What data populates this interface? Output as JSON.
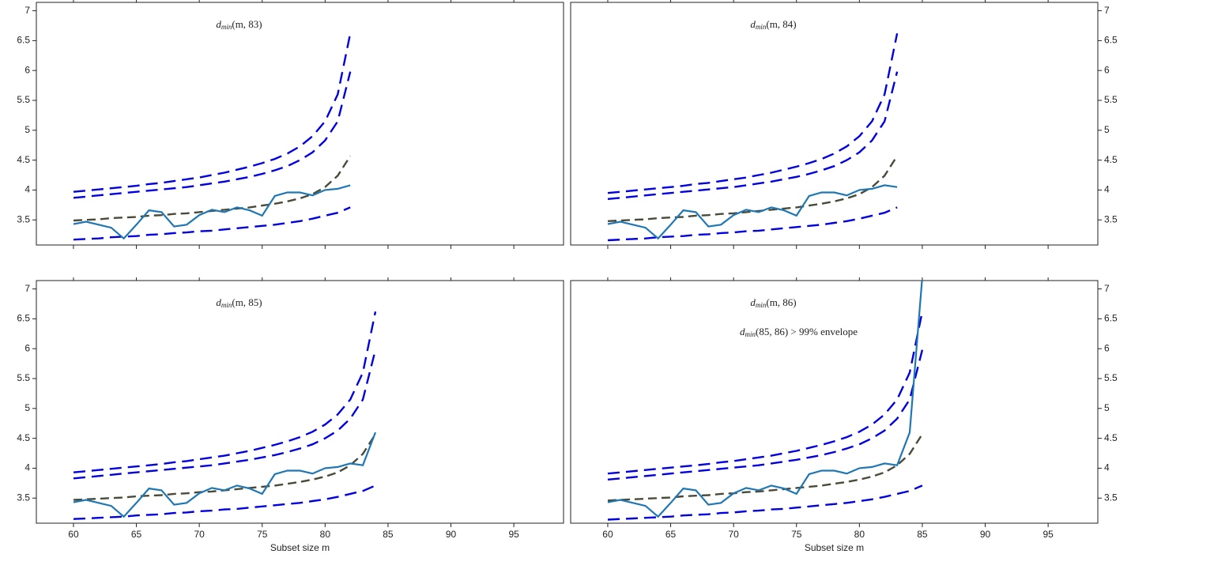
{
  "chart_data": [
    {
      "type": "line",
      "title": "dmin(m, 83)",
      "yaxis_side": "left",
      "show_xtick_labels": false,
      "x": [
        60,
        61,
        62,
        63,
        64,
        65,
        66,
        67,
        68,
        69,
        70,
        71,
        72,
        73,
        74,
        75,
        76,
        77,
        78,
        79,
        80,
        81,
        82
      ],
      "xlim": [
        57.05,
        98.95
      ],
      "ylim": [
        3.08,
        7.14
      ],
      "xticks": [
        60,
        65,
        70,
        75,
        80,
        85,
        90,
        95
      ],
      "yticks": [
        3.5,
        4,
        4.5,
        5,
        5.5,
        6,
        6.5,
        7
      ],
      "series": [
        {
          "color": "#0000e0",
          "style": "dashed",
          "values": [
            3.17,
            3.18,
            3.19,
            3.21,
            3.22,
            3.23,
            3.25,
            3.26,
            3.28,
            3.29,
            3.31,
            3.32,
            3.34,
            3.36,
            3.38,
            3.4,
            3.42,
            3.45,
            3.48,
            3.52,
            3.57,
            3.62,
            3.71
          ]
        },
        {
          "color": "#4a4a3a",
          "style": "dashed",
          "values": [
            3.49,
            3.5,
            3.51,
            3.53,
            3.54,
            3.55,
            3.57,
            3.58,
            3.6,
            3.61,
            3.63,
            3.65,
            3.67,
            3.69,
            3.71,
            3.74,
            3.77,
            3.81,
            3.86,
            3.93,
            4.05,
            4.24,
            4.57
          ]
        },
        {
          "color": "#0000e0",
          "style": "dashed",
          "values": [
            3.87,
            3.89,
            3.91,
            3.93,
            3.95,
            3.97,
            3.99,
            4.01,
            4.03,
            4.05,
            4.08,
            4.11,
            4.14,
            4.18,
            4.22,
            4.27,
            4.33,
            4.4,
            4.5,
            4.63,
            4.83,
            5.15,
            5.98
          ]
        },
        {
          "color": "#0000e0",
          "style": "dashed",
          "values": [
            3.97,
            3.99,
            4.01,
            4.03,
            4.05,
            4.07,
            4.1,
            4.12,
            4.15,
            4.18,
            4.21,
            4.25,
            4.29,
            4.34,
            4.39,
            4.45,
            4.52,
            4.61,
            4.73,
            4.9,
            5.15,
            5.6,
            6.62
          ]
        },
        {
          "color": "#1f77b4",
          "style": "solid",
          "values": [
            3.43,
            3.47,
            3.42,
            3.37,
            3.19,
            3.42,
            3.66,
            3.63,
            3.39,
            3.42,
            3.58,
            3.67,
            3.63,
            3.71,
            3.66,
            3.57,
            3.9,
            3.96,
            3.96,
            3.91,
            4.0,
            4.02,
            4.08
          ]
        }
      ]
    },
    {
      "type": "line",
      "title": "dmin(m, 84)",
      "yaxis_side": "right",
      "show_xtick_labels": false,
      "x": [
        60,
        61,
        62,
        63,
        64,
        65,
        66,
        67,
        68,
        69,
        70,
        71,
        72,
        73,
        74,
        75,
        76,
        77,
        78,
        79,
        80,
        81,
        82,
        83
      ],
      "xlim": [
        57.05,
        98.95
      ],
      "ylim": [
        3.08,
        7.14
      ],
      "xticks": [
        60,
        65,
        70,
        75,
        80,
        85,
        90,
        95
      ],
      "yticks": [
        3.5,
        4,
        4.5,
        5,
        5.5,
        6,
        6.5,
        7
      ],
      "series": [
        {
          "color": "#0000e0",
          "style": "dashed",
          "values": [
            3.16,
            3.17,
            3.18,
            3.19,
            3.21,
            3.22,
            3.23,
            3.25,
            3.26,
            3.28,
            3.29,
            3.31,
            3.32,
            3.34,
            3.36,
            3.38,
            3.4,
            3.42,
            3.45,
            3.48,
            3.52,
            3.57,
            3.62,
            3.71
          ]
        },
        {
          "color": "#4a4a3a",
          "style": "dashed",
          "values": [
            3.48,
            3.49,
            3.5,
            3.51,
            3.53,
            3.54,
            3.55,
            3.57,
            3.58,
            3.6,
            3.61,
            3.63,
            3.65,
            3.67,
            3.69,
            3.71,
            3.74,
            3.77,
            3.81,
            3.86,
            3.93,
            4.05,
            4.24,
            4.57
          ]
        },
        {
          "color": "#0000e0",
          "style": "dashed",
          "values": [
            3.85,
            3.87,
            3.89,
            3.91,
            3.93,
            3.95,
            3.97,
            3.99,
            4.01,
            4.03,
            4.05,
            4.08,
            4.11,
            4.14,
            4.18,
            4.22,
            4.27,
            4.33,
            4.4,
            4.5,
            4.63,
            4.83,
            5.15,
            5.98
          ]
        },
        {
          "color": "#0000e0",
          "style": "dashed",
          "values": [
            3.95,
            3.97,
            3.99,
            4.01,
            4.03,
            4.05,
            4.07,
            4.1,
            4.12,
            4.15,
            4.18,
            4.21,
            4.25,
            4.29,
            4.34,
            4.39,
            4.45,
            4.52,
            4.61,
            4.73,
            4.9,
            5.15,
            5.6,
            6.62
          ]
        },
        {
          "color": "#1f77b4",
          "style": "solid",
          "values": [
            3.43,
            3.47,
            3.42,
            3.37,
            3.19,
            3.42,
            3.66,
            3.63,
            3.39,
            3.42,
            3.58,
            3.67,
            3.63,
            3.71,
            3.66,
            3.57,
            3.9,
            3.96,
            3.96,
            3.91,
            4.0,
            4.02,
            4.08,
            4.05
          ]
        }
      ]
    },
    {
      "type": "line",
      "title": "dmin(m, 85)",
      "yaxis_side": "left",
      "show_xtick_labels": true,
      "xlabel": "Subset size m",
      "x": [
        60,
        61,
        62,
        63,
        64,
        65,
        66,
        67,
        68,
        69,
        70,
        71,
        72,
        73,
        74,
        75,
        76,
        77,
        78,
        79,
        80,
        81,
        82,
        83,
        84
      ],
      "xlim": [
        57.05,
        98.95
      ],
      "ylim": [
        3.08,
        7.14
      ],
      "xticks": [
        60,
        65,
        70,
        75,
        80,
        85,
        90,
        95
      ],
      "yticks": [
        3.5,
        4,
        4.5,
        5,
        5.5,
        6,
        6.5,
        7
      ],
      "series": [
        {
          "color": "#0000e0",
          "style": "dashed",
          "values": [
            3.15,
            3.16,
            3.17,
            3.18,
            3.19,
            3.21,
            3.22,
            3.23,
            3.25,
            3.26,
            3.28,
            3.29,
            3.31,
            3.32,
            3.34,
            3.36,
            3.38,
            3.4,
            3.42,
            3.45,
            3.48,
            3.52,
            3.57,
            3.62,
            3.71
          ]
        },
        {
          "color": "#4a4a3a",
          "style": "dashed",
          "values": [
            3.47,
            3.48,
            3.49,
            3.5,
            3.51,
            3.53,
            3.54,
            3.55,
            3.57,
            3.58,
            3.6,
            3.61,
            3.63,
            3.65,
            3.67,
            3.69,
            3.71,
            3.74,
            3.77,
            3.81,
            3.86,
            3.93,
            4.05,
            4.24,
            4.57
          ]
        },
        {
          "color": "#0000e0",
          "style": "dashed",
          "values": [
            3.83,
            3.85,
            3.87,
            3.89,
            3.91,
            3.93,
            3.95,
            3.97,
            3.99,
            4.01,
            4.03,
            4.05,
            4.08,
            4.11,
            4.14,
            4.18,
            4.22,
            4.27,
            4.33,
            4.4,
            4.5,
            4.63,
            4.83,
            5.15,
            5.98
          ]
        },
        {
          "color": "#0000e0",
          "style": "dashed",
          "values": [
            3.93,
            3.95,
            3.97,
            3.99,
            4.01,
            4.03,
            4.05,
            4.07,
            4.1,
            4.12,
            4.15,
            4.18,
            4.21,
            4.25,
            4.29,
            4.34,
            4.39,
            4.45,
            4.52,
            4.61,
            4.73,
            4.9,
            5.15,
            5.6,
            6.62
          ]
        },
        {
          "color": "#1f77b4",
          "style": "solid",
          "values": [
            3.43,
            3.47,
            3.42,
            3.37,
            3.19,
            3.42,
            3.66,
            3.63,
            3.39,
            3.42,
            3.58,
            3.67,
            3.63,
            3.71,
            3.66,
            3.57,
            3.9,
            3.96,
            3.96,
            3.91,
            4.0,
            4.02,
            4.08,
            4.05,
            4.6
          ]
        }
      ]
    },
    {
      "type": "line",
      "title": "dmin(m, 86)",
      "annotation": "dmin(85, 86) > 99% envelope",
      "yaxis_side": "right",
      "show_xtick_labels": true,
      "xlabel": "Subset size m",
      "x": [
        60,
        61,
        62,
        63,
        64,
        65,
        66,
        67,
        68,
        69,
        70,
        71,
        72,
        73,
        74,
        75,
        76,
        77,
        78,
        79,
        80,
        81,
        82,
        83,
        84,
        85
      ],
      "xlim": [
        57.05,
        98.95
      ],
      "ylim": [
        3.08,
        7.14
      ],
      "xticks": [
        60,
        65,
        70,
        75,
        80,
        85,
        90,
        95
      ],
      "yticks": [
        3.5,
        4,
        4.5,
        5,
        5.5,
        6,
        6.5,
        7
      ],
      "series": [
        {
          "color": "#0000e0",
          "style": "dashed",
          "values": [
            3.14,
            3.15,
            3.16,
            3.17,
            3.18,
            3.19,
            3.21,
            3.22,
            3.23,
            3.25,
            3.26,
            3.28,
            3.29,
            3.31,
            3.32,
            3.34,
            3.36,
            3.38,
            3.4,
            3.42,
            3.45,
            3.48,
            3.52,
            3.57,
            3.62,
            3.71
          ]
        },
        {
          "color": "#4a4a3a",
          "style": "dashed",
          "values": [
            3.46,
            3.47,
            3.48,
            3.49,
            3.5,
            3.51,
            3.53,
            3.54,
            3.55,
            3.57,
            3.58,
            3.6,
            3.61,
            3.63,
            3.65,
            3.67,
            3.69,
            3.71,
            3.74,
            3.77,
            3.81,
            3.86,
            3.93,
            4.05,
            4.24,
            4.57
          ]
        },
        {
          "color": "#0000e0",
          "style": "dashed",
          "values": [
            3.81,
            3.83,
            3.85,
            3.87,
            3.89,
            3.91,
            3.93,
            3.95,
            3.97,
            3.99,
            4.01,
            4.03,
            4.05,
            4.08,
            4.11,
            4.14,
            4.18,
            4.22,
            4.27,
            4.33,
            4.4,
            4.5,
            4.63,
            4.83,
            5.15,
            5.98
          ]
        },
        {
          "color": "#0000e0",
          "style": "dashed",
          "values": [
            3.91,
            3.93,
            3.95,
            3.97,
            3.99,
            4.01,
            4.03,
            4.05,
            4.07,
            4.1,
            4.12,
            4.15,
            4.18,
            4.21,
            4.25,
            4.29,
            4.34,
            4.39,
            4.45,
            4.52,
            4.61,
            4.73,
            4.9,
            5.15,
            5.6,
            6.62
          ]
        },
        {
          "color": "#1f77b4",
          "style": "solid",
          "values": [
            3.43,
            3.47,
            3.42,
            3.37,
            3.19,
            3.42,
            3.66,
            3.63,
            3.39,
            3.42,
            3.58,
            3.67,
            3.63,
            3.71,
            3.66,
            3.57,
            3.9,
            3.96,
            3.96,
            3.91,
            4.0,
            4.02,
            4.08,
            4.05,
            4.6,
            7.2
          ]
        }
      ]
    }
  ]
}
